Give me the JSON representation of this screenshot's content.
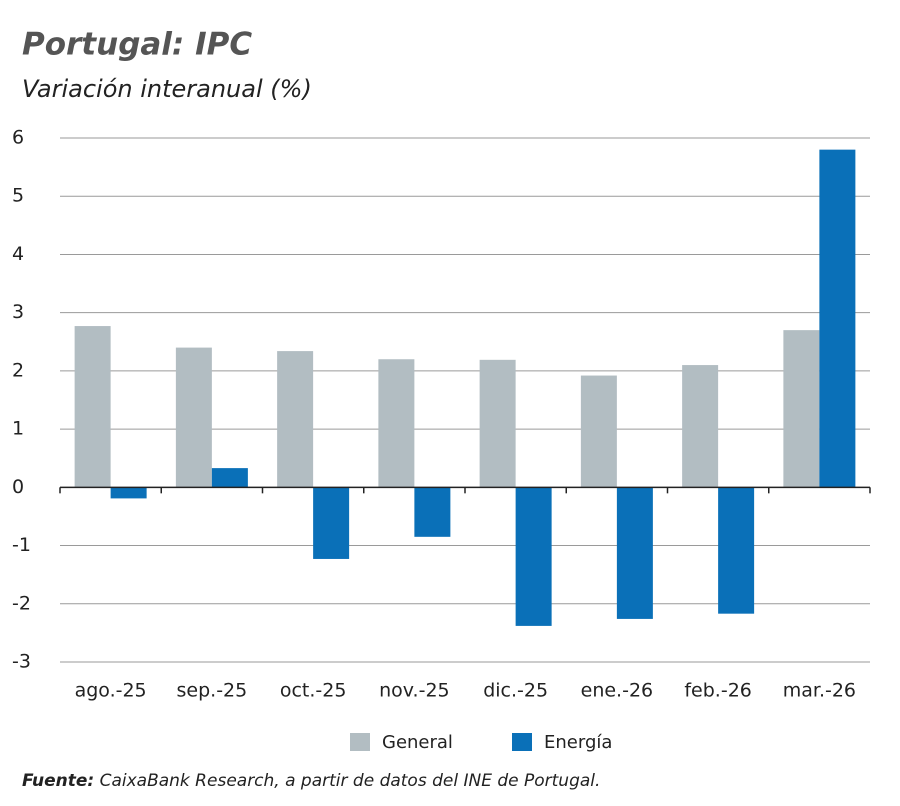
{
  "chart_data": {
    "type": "bar",
    "title": "Portugal: IPC",
    "subtitle": "Variación interanual (%)",
    "categories": [
      "ago.-25",
      "sep.-25",
      "oct.-25",
      "nov.-25",
      "dic.-25",
      "ene.-26",
      "feb.-26",
      "mar.-26"
    ],
    "series": [
      {
        "name": "General",
        "color": "#b2bdc2",
        "values": [
          2.77,
          2.4,
          2.34,
          2.2,
          2.19,
          1.92,
          2.1,
          2.7
        ]
      },
      {
        "name": "Energía",
        "color": "#0a70b8",
        "values": [
          -0.19,
          0.33,
          -1.23,
          -0.85,
          -2.38,
          -2.26,
          -2.17,
          5.8
        ]
      }
    ],
    "ylim": [
      -3,
      6
    ],
    "yticks": [
      -3,
      -2,
      -1,
      0,
      1,
      2,
      3,
      4,
      5,
      6
    ],
    "grid": true,
    "legend": "bottom",
    "source_label": "Fuente:",
    "source": "CaixaBank Research, a partir de datos del INE de Portugal."
  }
}
